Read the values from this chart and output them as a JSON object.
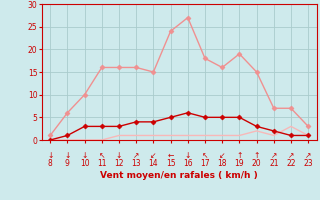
{
  "hours": [
    8,
    9,
    10,
    11,
    12,
    13,
    14,
    15,
    16,
    17,
    18,
    19,
    20,
    21,
    22,
    23
  ],
  "wind_avg": [
    0,
    1,
    3,
    3,
    3,
    4,
    4,
    5,
    6,
    5,
    5,
    5,
    3,
    2,
    1,
    1
  ],
  "wind_gust": [
    1,
    6,
    10,
    16,
    16,
    16,
    15,
    24,
    27,
    18,
    16,
    19,
    15,
    7,
    7,
    3
  ],
  "wind_min": [
    0,
    0,
    0,
    0,
    1,
    1,
    1,
    1,
    1,
    1,
    1,
    1,
    2,
    1,
    3,
    1
  ],
  "bg_color": "#ceeaec",
  "grid_color": "#aacccc",
  "line_color_gust": "#f09090",
  "line_color_avg": "#cc0000",
  "line_color_min": "#f8b8b8",
  "xlabel": "Vent moyen/en rafales ( km/h )",
  "xlabel_color": "#cc0000",
  "yticks": [
    0,
    5,
    10,
    15,
    20,
    25,
    30
  ],
  "xticks": [
    8,
    9,
    10,
    11,
    12,
    13,
    14,
    15,
    16,
    17,
    18,
    19,
    20,
    21,
    22,
    23
  ],
  "ylim": [
    0,
    30
  ],
  "xlim": [
    7.5,
    23.5
  ],
  "marker_size": 2.5,
  "line_width": 1.0,
  "tick_color": "#cc0000",
  "axes_color": "#cc0000",
  "arrows": [
    "↓",
    "↓",
    "↓",
    "↖",
    "↓",
    "↗",
    "↙",
    "←",
    "↓",
    "↖",
    "↙",
    "↑",
    "↑",
    "↗",
    "↗",
    "↗"
  ]
}
